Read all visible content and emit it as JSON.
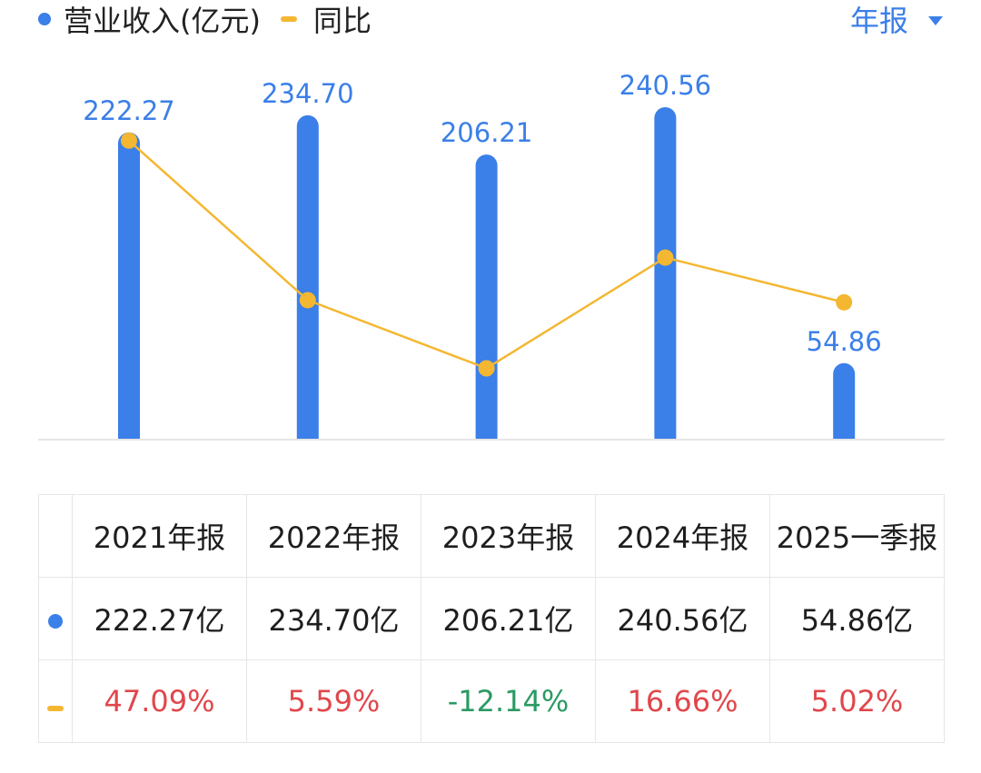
{
  "legend": {
    "series1": "营业收入(亿元)",
    "series2": "同比",
    "color1": "#3b7fe8",
    "color2": "#f4b731"
  },
  "period_selector": {
    "label": "年报",
    "color": "#3b7fe8"
  },
  "chart_data": {
    "type": "bar+line",
    "categories": [
      "2021年报",
      "2022年报",
      "2023年报",
      "2024年报",
      "2025一季报"
    ],
    "series": [
      {
        "name": "营业收入(亿元)",
        "type": "bar",
        "values": [
          222.27,
          234.7,
          206.21,
          240.56,
          54.86
        ],
        "labels": [
          "222.27",
          "234.70",
          "206.21",
          "240.56",
          "54.86"
        ]
      },
      {
        "name": "同比",
        "type": "line",
        "values": [
          47.09,
          5.59,
          -12.14,
          16.66,
          5.02
        ]
      }
    ],
    "ylim": [
      0,
      240.56
    ],
    "line_ylim": [
      -30.45,
      55.31
    ],
    "grid": false,
    "legend_position": "top-left"
  },
  "table": {
    "headers": [
      "2021年报",
      "2022年报",
      "2023年报",
      "2024年报",
      "2025一季报"
    ],
    "revenue": [
      "222.27亿",
      "234.70亿",
      "206.21亿",
      "240.56亿",
      "54.86亿"
    ],
    "yoy": [
      "47.09%",
      "5.59%",
      "-12.14%",
      "16.66%",
      "5.02%"
    ],
    "positive_color": "#e0474c",
    "negative_color": "#2a9a63"
  }
}
